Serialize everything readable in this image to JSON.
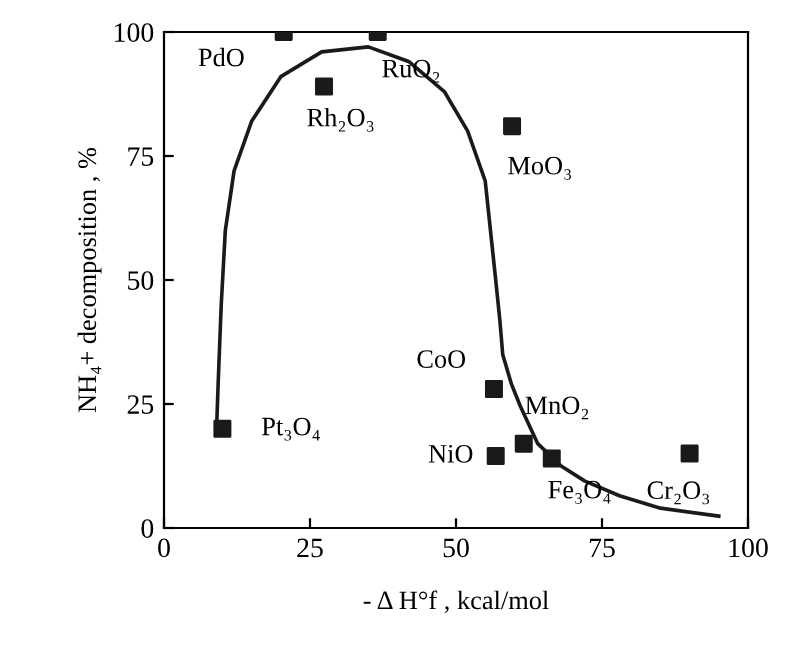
{
  "chart_data": {
    "type": "scatter",
    "xlabel": "- Δ H°f , kcal/mol",
    "ylabel": "NH₄+ decomposition , %",
    "xlim": [
      0,
      100
    ],
    "ylim": [
      0,
      100
    ],
    "xticks": [
      0,
      25,
      50,
      75,
      100
    ],
    "yticks": [
      0,
      25,
      50,
      75,
      100
    ],
    "grid": false,
    "legend": false,
    "series": [
      {
        "color": "#1a1a1a",
        "marker": "square",
        "x": [
          20.5,
          36.6,
          27.4,
          59.6,
          10,
          56.5,
          56.8,
          61.6,
          66.4,
          90
        ],
        "values": [
          100,
          100,
          89,
          81,
          20,
          28,
          14.5,
          17,
          14,
          15
        ]
      },
      {
        "type": "line",
        "color": "#1a1a1a",
        "marker": "none",
        "line_style": "solid",
        "x": [
          9,
          9.3,
          9.8,
          10.5,
          12,
          15,
          20,
          27,
          35,
          42,
          48,
          52,
          55,
          56.8,
          57.5,
          58,
          59.5,
          61,
          64,
          68,
          72,
          78,
          85,
          95
        ],
        "values": [
          20,
          30,
          45,
          60,
          72,
          82,
          91,
          96,
          97,
          94,
          88,
          80,
          70,
          50,
          42,
          35,
          29,
          24.6,
          17,
          12.5,
          9.5,
          6.5,
          4,
          2.4
        ]
      }
    ],
    "annotations": [
      {
        "text": "PdO",
        "x": 20.5,
        "y": 100
      },
      {
        "text": "RuO₂",
        "x": 36.6,
        "y": 100
      },
      {
        "text": "Rh₂O₃",
        "x": 27.4,
        "y": 89
      },
      {
        "text": "MoO₃",
        "x": 59.6,
        "y": 81
      },
      {
        "text": "Pt₃O₄",
        "x": 10,
        "y": 20
      },
      {
        "text": "CoO",
        "x": 56.5,
        "y": 28
      },
      {
        "text": "NiO",
        "x": 56.8,
        "y": 14.5
      },
      {
        "text": "MnO₂",
        "x": 61.6,
        "y": 17
      },
      {
        "text": "Fe₃O₄",
        "x": 66.4,
        "y": 14
      },
      {
        "text": "Cr₂O₃",
        "x": 90,
        "y": 15
      }
    ]
  }
}
